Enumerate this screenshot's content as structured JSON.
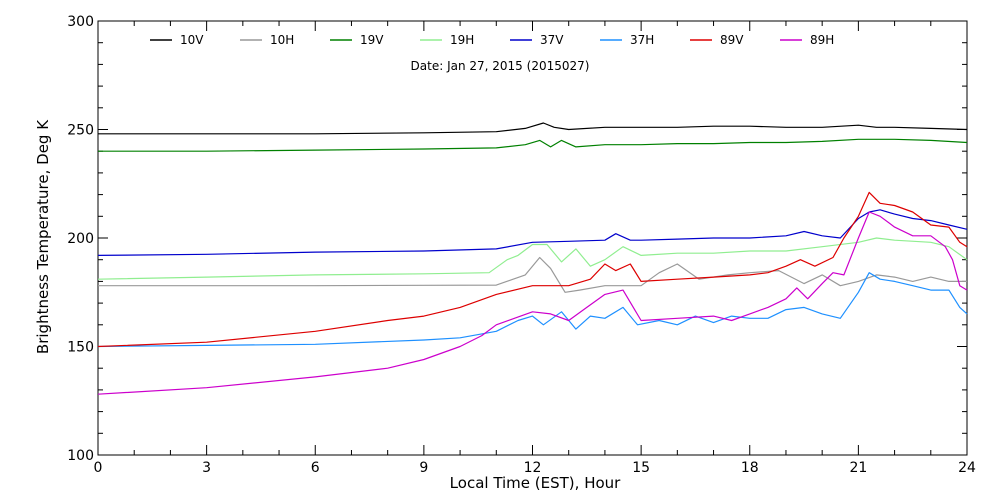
{
  "chart_data": {
    "type": "line",
    "date_label": "Date: Jan 27, 2015 (2015027)",
    "xlabel": "Local Time (EST), Hour",
    "ylabel": "Brightness Temperature, Deg K",
    "xlim": [
      0,
      24
    ],
    "ylim": [
      100,
      300
    ],
    "xticks": [
      0,
      3,
      6,
      9,
      12,
      15,
      18,
      21,
      24
    ],
    "yticks": [
      100,
      150,
      200,
      250,
      300
    ],
    "grid": false,
    "legend_position": "top",
    "series": [
      {
        "name": "10V",
        "color": "#000000",
        "points": [
          [
            0,
            248
          ],
          [
            3,
            248
          ],
          [
            6,
            248
          ],
          [
            9,
            248.5
          ],
          [
            11,
            249
          ],
          [
            11.8,
            250.5
          ],
          [
            12.3,
            253
          ],
          [
            12.6,
            251
          ],
          [
            13,
            250
          ],
          [
            14,
            251
          ],
          [
            15,
            251
          ],
          [
            16,
            251
          ],
          [
            17,
            251.5
          ],
          [
            18,
            251.5
          ],
          [
            19,
            251
          ],
          [
            20,
            251
          ],
          [
            21,
            252
          ],
          [
            21.5,
            251
          ],
          [
            22,
            251
          ],
          [
            23,
            250.5
          ],
          [
            24,
            250
          ]
        ]
      },
      {
        "name": "10H",
        "color": "#999999",
        "points": [
          [
            0,
            178
          ],
          [
            3,
            178
          ],
          [
            6,
            178
          ],
          [
            9,
            178.2
          ],
          [
            11,
            178.3
          ],
          [
            11.8,
            183
          ],
          [
            12.2,
            191
          ],
          [
            12.5,
            186
          ],
          [
            12.9,
            175
          ],
          [
            13.3,
            176
          ],
          [
            14,
            178
          ],
          [
            15,
            178
          ],
          [
            15.5,
            184
          ],
          [
            16,
            188
          ],
          [
            16.6,
            181
          ],
          [
            17.4,
            183
          ],
          [
            18,
            184
          ],
          [
            18.8,
            185
          ],
          [
            19.5,
            179
          ],
          [
            20,
            183
          ],
          [
            20.5,
            178
          ],
          [
            21,
            180
          ],
          [
            21.5,
            183
          ],
          [
            22,
            182
          ],
          [
            22.5,
            180
          ],
          [
            23,
            182
          ],
          [
            23.5,
            180
          ],
          [
            24,
            180
          ]
        ]
      },
      {
        "name": "19V",
        "color": "#008000",
        "points": [
          [
            0,
            240
          ],
          [
            3,
            240
          ],
          [
            6,
            240.5
          ],
          [
            9,
            241
          ],
          [
            11,
            241.5
          ],
          [
            11.8,
            243
          ],
          [
            12.2,
            245
          ],
          [
            12.5,
            242
          ],
          [
            12.8,
            245
          ],
          [
            13.2,
            242
          ],
          [
            14,
            243
          ],
          [
            15,
            243
          ],
          [
            16,
            243.5
          ],
          [
            17,
            243.5
          ],
          [
            18,
            244
          ],
          [
            19,
            244
          ],
          [
            20,
            244.5
          ],
          [
            21,
            245.5
          ],
          [
            22,
            245.5
          ],
          [
            23,
            245
          ],
          [
            24,
            244
          ]
        ]
      },
      {
        "name": "19H",
        "color": "#90EE90",
        "points": [
          [
            0,
            181
          ],
          [
            3,
            182
          ],
          [
            6,
            183
          ],
          [
            9,
            183.5
          ],
          [
            10.8,
            184
          ],
          [
            11.3,
            190
          ],
          [
            11.6,
            192
          ],
          [
            12,
            197
          ],
          [
            12.4,
            197
          ],
          [
            12.8,
            189
          ],
          [
            13.2,
            195
          ],
          [
            13.6,
            187
          ],
          [
            14,
            190
          ],
          [
            14.5,
            196
          ],
          [
            15,
            192
          ],
          [
            16,
            193
          ],
          [
            17,
            193
          ],
          [
            18,
            194
          ],
          [
            19,
            194
          ],
          [
            20,
            196
          ],
          [
            21,
            198
          ],
          [
            21.5,
            200
          ],
          [
            22,
            199
          ],
          [
            23,
            198
          ],
          [
            23.5,
            196
          ],
          [
            24,
            190
          ]
        ]
      },
      {
        "name": "37V",
        "color": "#0000CC",
        "points": [
          [
            0,
            192
          ],
          [
            3,
            192.5
          ],
          [
            6,
            193.5
          ],
          [
            9,
            194
          ],
          [
            11,
            195
          ],
          [
            12,
            198
          ],
          [
            13,
            198.5
          ],
          [
            14,
            199
          ],
          [
            14.3,
            202
          ],
          [
            14.7,
            199
          ],
          [
            15,
            199
          ],
          [
            16,
            199.5
          ],
          [
            17,
            200
          ],
          [
            18,
            200
          ],
          [
            19,
            201
          ],
          [
            19.5,
            203
          ],
          [
            20,
            201
          ],
          [
            20.5,
            200
          ],
          [
            21,
            209
          ],
          [
            21.3,
            212
          ],
          [
            21.6,
            213
          ],
          [
            22,
            211
          ],
          [
            22.5,
            209
          ],
          [
            23,
            208
          ],
          [
            23.5,
            206
          ],
          [
            24,
            204
          ]
        ]
      },
      {
        "name": "37H",
        "color": "#1E90FF",
        "points": [
          [
            0,
            150
          ],
          [
            3,
            150.5
          ],
          [
            6,
            151
          ],
          [
            9,
            153
          ],
          [
            10,
            154
          ],
          [
            11,
            157
          ],
          [
            11.6,
            162
          ],
          [
            12,
            164
          ],
          [
            12.3,
            160
          ],
          [
            12.8,
            166
          ],
          [
            13.2,
            158
          ],
          [
            13.6,
            164
          ],
          [
            14,
            163
          ],
          [
            14.5,
            168
          ],
          [
            14.9,
            160
          ],
          [
            15.5,
            162
          ],
          [
            16,
            160
          ],
          [
            16.5,
            164
          ],
          [
            17,
            161
          ],
          [
            17.5,
            164
          ],
          [
            18,
            163
          ],
          [
            18.5,
            163
          ],
          [
            19,
            167
          ],
          [
            19.5,
            168
          ],
          [
            20,
            165
          ],
          [
            20.5,
            163
          ],
          [
            21,
            175
          ],
          [
            21.3,
            184
          ],
          [
            21.6,
            181
          ],
          [
            22,
            180
          ],
          [
            22.5,
            178
          ],
          [
            23,
            176
          ],
          [
            23.5,
            176
          ],
          [
            23.8,
            168
          ],
          [
            24,
            165
          ]
        ]
      },
      {
        "name": "89V",
        "color": "#DD0000",
        "points": [
          [
            0,
            150
          ],
          [
            3,
            152
          ],
          [
            6,
            157
          ],
          [
            8,
            162
          ],
          [
            9,
            164
          ],
          [
            10,
            168
          ],
          [
            11,
            174
          ],
          [
            12,
            178
          ],
          [
            13,
            178
          ],
          [
            13.6,
            181
          ],
          [
            14,
            188
          ],
          [
            14.3,
            185
          ],
          [
            14.7,
            188
          ],
          [
            15,
            180
          ],
          [
            16,
            181
          ],
          [
            17,
            182
          ],
          [
            18,
            183
          ],
          [
            18.5,
            184
          ],
          [
            19,
            187
          ],
          [
            19.4,
            190
          ],
          [
            19.8,
            187
          ],
          [
            20.3,
            191
          ],
          [
            20.6,
            200
          ],
          [
            21,
            210
          ],
          [
            21.3,
            221
          ],
          [
            21.6,
            216
          ],
          [
            22,
            215
          ],
          [
            22.5,
            212
          ],
          [
            23,
            206
          ],
          [
            23.5,
            205
          ],
          [
            23.8,
            198
          ],
          [
            24,
            196
          ]
        ]
      },
      {
        "name": "89H",
        "color": "#CC00CC",
        "points": [
          [
            0,
            128
          ],
          [
            3,
            131
          ],
          [
            6,
            136
          ],
          [
            8,
            140
          ],
          [
            9,
            144
          ],
          [
            10,
            150
          ],
          [
            10.6,
            155
          ],
          [
            11,
            160
          ],
          [
            11.5,
            163
          ],
          [
            12,
            166
          ],
          [
            12.5,
            165
          ],
          [
            13,
            162
          ],
          [
            13.5,
            168
          ],
          [
            14,
            174
          ],
          [
            14.5,
            176
          ],
          [
            15,
            162
          ],
          [
            16,
            163
          ],
          [
            17,
            164
          ],
          [
            17.5,
            162
          ],
          [
            18,
            165
          ],
          [
            18.5,
            168
          ],
          [
            19,
            172
          ],
          [
            19.3,
            177
          ],
          [
            19.6,
            172
          ],
          [
            20,
            179
          ],
          [
            20.3,
            184
          ],
          [
            20.6,
            183
          ],
          [
            21,
            200
          ],
          [
            21.3,
            212
          ],
          [
            21.6,
            210
          ],
          [
            22,
            205
          ],
          [
            22.5,
            201
          ],
          [
            23,
            201
          ],
          [
            23.4,
            196
          ],
          [
            23.6,
            190
          ],
          [
            23.8,
            178
          ],
          [
            24,
            176
          ]
        ]
      }
    ]
  }
}
